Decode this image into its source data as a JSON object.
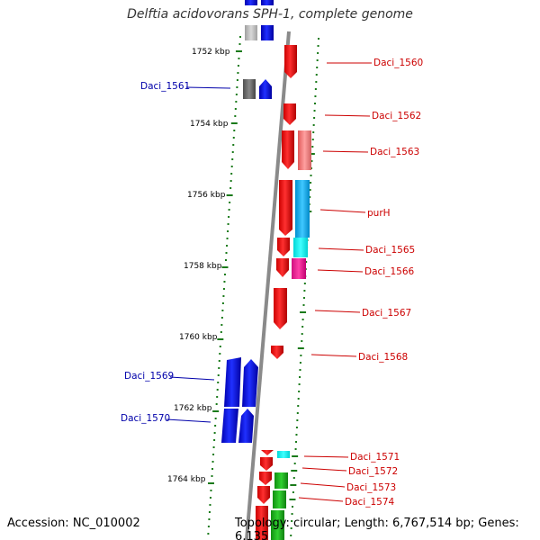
{
  "title": "Delftia acidovorans SPH-1, complete genome",
  "footer": {
    "accession": "Accession: NC_010002",
    "topology": "Topology: circular; Length: 6,767,514 bp; Genes: 6,135"
  },
  "scale_labels": [
    "1752 kbp",
    "1754 kbp",
    "1756 kbp",
    "1758 kbp",
    "1760 kbp",
    "1762 kbp",
    "1764 kbp"
  ],
  "genes_left": [
    "Daci_1561",
    "Daci_1569",
    "Daci_1570"
  ],
  "genes_right": [
    "Daci_1560",
    "Daci_1562",
    "Daci_1563",
    "purH",
    "Daci_1565",
    "Daci_1566",
    "Daci_1567",
    "Daci_1568",
    "Daci_1571",
    "Daci_1572",
    "Daci_1573",
    "Daci_1574"
  ],
  "colors": {
    "forward": "#ff0000",
    "reverse": "#0000ff",
    "backbone": "#888888",
    "tick": "#1a7a1a",
    "label_left": "#0000aa",
    "label_right": "#cc0000"
  }
}
